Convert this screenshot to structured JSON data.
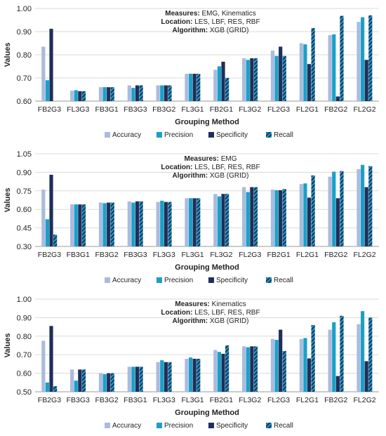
{
  "chart_data": [
    {
      "type": "bar",
      "title": "",
      "annotation": [
        {
          "label": "Measures:",
          "value": "EMG, Kinematics"
        },
        {
          "label": "Location:",
          "value": "LES, LBF, RES, RBF"
        },
        {
          "label": "Algorithm:",
          "value": "XGB (GRID)"
        }
      ],
      "xlabel": "Grouping Method",
      "ylabel": "Values",
      "ylim": [
        0.6,
        1.0
      ],
      "yticks": [
        "0.60",
        "0.70",
        "0.80",
        "0.90",
        "1.00"
      ],
      "categories": [
        "FB2G3",
        "FL3G3",
        "FB3G1",
        "FB3G3",
        "FB3G2",
        "FL3G1",
        "FB2G1",
        "FL3G2",
        "FL2G3",
        "FL2G1",
        "FB2G2",
        "FL2G2"
      ],
      "series": [
        {
          "name": "Accuracy",
          "values": [
            0.835,
            0.645,
            0.66,
            0.668,
            0.668,
            0.718,
            0.735,
            0.785,
            0.818,
            0.85,
            0.885,
            0.942
          ]
        },
        {
          "name": "Precision",
          "values": [
            0.69,
            0.647,
            0.66,
            0.657,
            0.668,
            0.718,
            0.75,
            0.778,
            0.795,
            0.845,
            0.888,
            0.962
          ]
        },
        {
          "name": "Specificity",
          "values": [
            0.912,
            0.643,
            0.66,
            0.668,
            0.668,
            0.718,
            0.77,
            0.785,
            0.835,
            0.76,
            0.62,
            0.778
          ]
        },
        {
          "name": "Recall",
          "values": [
            0.6,
            0.643,
            0.66,
            0.668,
            0.668,
            0.718,
            0.7,
            0.785,
            0.795,
            0.915,
            0.968,
            0.97
          ]
        }
      ],
      "legend": "bottom"
    },
    {
      "type": "bar",
      "title": "",
      "annotation": [
        {
          "label": "Measures:",
          "value": "EMG"
        },
        {
          "label": "Location:",
          "value": "LES, LBF, RES, RBF"
        },
        {
          "label": "Algorithm:",
          "value": "XGB (GRID)"
        }
      ],
      "xlabel": "Grouping Method",
      "ylabel": "Values",
      "ylim": [
        0.3,
        1.05
      ],
      "yticks": [
        "0.30",
        "0.45",
        "0.60",
        "0.75",
        "0.90",
        "1.05"
      ],
      "categories": [
        "FB2G3",
        "FB3G1",
        "FB3G2",
        "FB3G3",
        "FL3G3",
        "FL3G1",
        "FL3G2",
        "FL2G3",
        "FB2G1",
        "FL2G1",
        "FB2G2",
        "FL2G2"
      ],
      "series": [
        {
          "name": "Accuracy",
          "values": [
            0.76,
            0.64,
            0.655,
            0.665,
            0.66,
            0.69,
            0.725,
            0.78,
            0.76,
            0.805,
            0.865,
            0.925
          ]
        },
        {
          "name": "Precision",
          "values": [
            0.52,
            0.64,
            0.65,
            0.655,
            0.67,
            0.69,
            0.705,
            0.74,
            0.755,
            0.81,
            0.905,
            0.96
          ]
        },
        {
          "name": "Specificity",
          "values": [
            0.88,
            0.64,
            0.655,
            0.665,
            0.66,
            0.69,
            0.725,
            0.78,
            0.755,
            0.695,
            0.69,
            0.78
          ]
        },
        {
          "name": "Recall",
          "values": [
            0.395,
            0.64,
            0.655,
            0.665,
            0.66,
            0.69,
            0.725,
            0.78,
            0.765,
            0.875,
            0.91,
            0.95
          ]
        }
      ],
      "legend": "bottom"
    },
    {
      "type": "bar",
      "title": "",
      "annotation": [
        {
          "label": "Measures:",
          "value": "Kinematics"
        },
        {
          "label": "Location:",
          "value": "LES, LBF, RES, RBF"
        },
        {
          "label": "Algorithm:",
          "value": "XGB (GRID)"
        }
      ],
      "xlabel": "Grouping Method",
      "ylabel": "Values",
      "ylim": [
        0.5,
        1.0
      ],
      "yticks": [
        "0.50",
        "0.60",
        "0.70",
        "0.80",
        "0.90",
        "1.00"
      ],
      "categories": [
        "FB2G3",
        "FB3G3",
        "FB3G2",
        "FB3G1",
        "FL3G3",
        "FL3G1",
        "FB2G1",
        "FL3G2",
        "FL2G3",
        "FL2G1",
        "FB2G2",
        "FL2G2"
      ],
      "series": [
        {
          "name": "Accuracy",
          "values": [
            0.775,
            0.62,
            0.6,
            0.635,
            0.66,
            0.678,
            0.725,
            0.745,
            0.785,
            0.785,
            0.835,
            0.865
          ]
        },
        {
          "name": "Precision",
          "values": [
            0.55,
            0.56,
            0.595,
            0.635,
            0.67,
            0.685,
            0.715,
            0.74,
            0.78,
            0.79,
            0.875,
            0.935
          ]
        },
        {
          "name": "Specificity",
          "values": [
            0.855,
            0.62,
            0.6,
            0.635,
            0.66,
            0.678,
            0.705,
            0.745,
            0.835,
            0.68,
            0.585,
            0.665
          ]
        },
        {
          "name": "Recall",
          "values": [
            0.53,
            0.62,
            0.6,
            0.635,
            0.66,
            0.678,
            0.75,
            0.745,
            0.72,
            0.86,
            0.91,
            0.9
          ]
        }
      ],
      "legend": "bottom"
    }
  ],
  "colors": {
    "Accuracy": "#aabbdd",
    "Precision": "#1aa0c8",
    "Specificity": "#1f2f5a",
    "Recall_base": "#1aa0c8",
    "Recall_stripe": "#1f2f5a",
    "grid": "#d9d9d9"
  }
}
